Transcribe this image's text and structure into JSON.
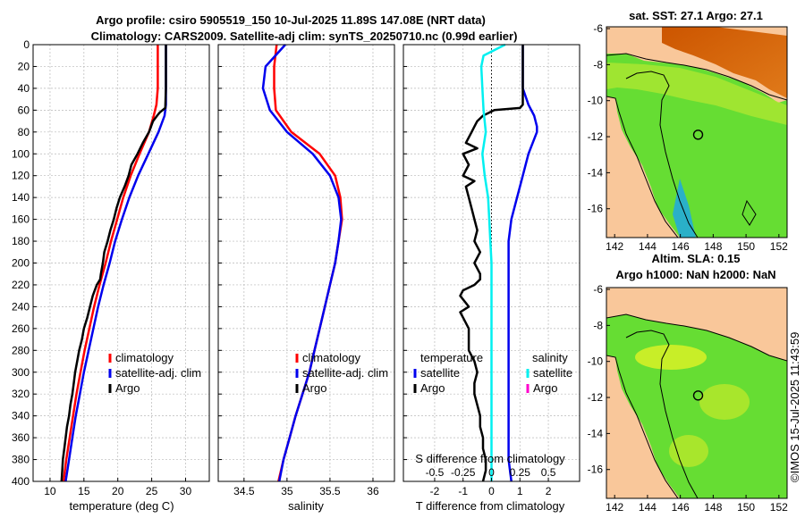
{
  "header": {
    "line1": "Argo profile: csiro 5905519_150 10-Jul-2025 11.89S 147.08E (NRT data)",
    "line2": "Climatology: CARS2009. Satellite-adj clim: synTS_20250710.nc (0.99d earlier)"
  },
  "credit": "©IMOS 15-Jul-2025 11:43:59",
  "colors": {
    "red": "#ff0000",
    "blue": "#0000ee",
    "black": "#000000",
    "cyan": "#00f0f0",
    "magenta": "#ff00cc",
    "grid": "#b8b8b8",
    "land": "#f9c79a",
    "ocean": "#66dd33"
  },
  "chart_data": [
    {
      "id": "temperature",
      "type": "line",
      "xlabel": "temperature (deg C)",
      "ylim": [
        400,
        0
      ],
      "xlim": [
        7.5,
        33.5
      ],
      "xticks": [
        10,
        15,
        20,
        25,
        30
      ],
      "yticks": [
        0,
        20,
        40,
        60,
        80,
        100,
        120,
        140,
        160,
        180,
        200,
        220,
        240,
        260,
        280,
        300,
        320,
        340,
        360,
        380,
        400
      ],
      "legend": [
        "climatology",
        "satellite-adj. clim",
        "Argo"
      ],
      "series": [
        {
          "name": "climatology",
          "color": "#ff0000",
          "depth": [
            0,
            20,
            40,
            55,
            65,
            80,
            100,
            120,
            140,
            160,
            180,
            200,
            220,
            240,
            260,
            280,
            300,
            320,
            340,
            360,
            380,
            400
          ],
          "values": [
            25.9,
            25.9,
            25.9,
            25.7,
            25.3,
            24.6,
            23.2,
            21.9,
            20.8,
            19.9,
            19.0,
            18.2,
            17.3,
            16.5,
            15.8,
            15.1,
            14.5,
            13.9,
            13.4,
            12.9,
            12.4,
            12.0
          ]
        },
        {
          "name": "satellite-adj. clim",
          "color": "#0000ee",
          "depth": [
            0,
            20,
            40,
            55,
            65,
            80,
            100,
            120,
            140,
            160,
            180,
            200,
            220,
            240,
            260,
            280,
            300,
            320,
            340,
            360,
            380,
            400
          ],
          "values": [
            27.1,
            27.1,
            27.1,
            27.1,
            26.9,
            26.0,
            24.5,
            23.0,
            21.7,
            20.6,
            19.6,
            18.8,
            17.9,
            17.1,
            16.4,
            15.7,
            15.0,
            14.4,
            13.8,
            13.3,
            12.8,
            12.3
          ]
        },
        {
          "name": "Argo",
          "color": "#000000",
          "depth": [
            0,
            20,
            40,
            58,
            62,
            65,
            70,
            80,
            90,
            100,
            110,
            120,
            130,
            140,
            150,
            160,
            170,
            180,
            190,
            200,
            210,
            215,
            220,
            230,
            240,
            250,
            260,
            270,
            280,
            290,
            300,
            310,
            320,
            330,
            340,
            350,
            360,
            370,
            380,
            390,
            400
          ],
          "values": [
            27.1,
            27.1,
            27.1,
            27.0,
            26.2,
            25.8,
            25.2,
            24.6,
            23.7,
            22.9,
            22.0,
            21.6,
            21.0,
            20.3,
            19.8,
            19.4,
            18.9,
            18.5,
            18.0,
            17.8,
            17.5,
            17.4,
            16.9,
            16.3,
            15.9,
            15.5,
            15.0,
            14.7,
            14.3,
            14.0,
            13.7,
            13.5,
            13.3,
            13.0,
            12.8,
            12.5,
            12.3,
            12.1,
            11.9,
            11.8,
            11.7
          ]
        }
      ]
    },
    {
      "id": "salinity",
      "type": "line",
      "xlabel": "salinity",
      "ylim": [
        400,
        0
      ],
      "xlim": [
        34.2,
        36.25
      ],
      "xticks": [
        34.5,
        35,
        35.5,
        36
      ],
      "xticklabels": [
        "34.5",
        "35",
        "35.5",
        "36"
      ],
      "legend": [
        "climatology",
        "satellite-adj. clim",
        "Argo"
      ],
      "series": [
        {
          "name": "climatology",
          "color": "#ff0000",
          "depth": [
            0,
            20,
            40,
            60,
            80,
            100,
            120,
            140,
            160,
            180,
            200,
            220,
            240,
            260,
            280,
            300,
            320,
            340,
            360,
            380,
            400
          ],
          "values": [
            34.88,
            34.85,
            34.85,
            34.87,
            35.05,
            35.38,
            35.56,
            35.62,
            35.64,
            35.6,
            35.56,
            35.5,
            35.44,
            35.38,
            35.32,
            35.26,
            35.18,
            35.1,
            35.03,
            34.96,
            34.9
          ]
        },
        {
          "name": "satellite-adj. clim",
          "color": "#0000ee",
          "depth": [
            0,
            20,
            40,
            60,
            80,
            100,
            120,
            140,
            160,
            180,
            200,
            220,
            240,
            260,
            280,
            300,
            320,
            340,
            360,
            380,
            400
          ],
          "values": [
            34.98,
            34.75,
            34.72,
            34.8,
            35.0,
            35.3,
            35.5,
            35.6,
            35.63,
            35.6,
            35.56,
            35.5,
            35.44,
            35.38,
            35.32,
            35.26,
            35.18,
            35.1,
            35.03,
            34.96,
            34.91
          ]
        }
      ]
    },
    {
      "id": "differences",
      "type": "line",
      "xlabel": "T difference from climatology",
      "x2label": "S difference from climatology",
      "ylim": [
        400,
        0
      ],
      "xlim": [
        -3.1,
        3.1
      ],
      "xticks": [
        -2,
        -1,
        0,
        1,
        2
      ],
      "x2lim": [
        -0.775,
        0.775
      ],
      "x2ticks": [
        -0.5,
        -0.25,
        0,
        0.25,
        0.5
      ],
      "x2ticklabels": [
        "-0.5",
        "-0.25",
        "0",
        "0.25",
        "0.5"
      ],
      "legend_left_title": "temperature",
      "legend_left": [
        "satellite",
        "Argo"
      ],
      "legend_right_title": "salinity",
      "legend_right": [
        "satellite",
        "Argo"
      ],
      "series": [
        {
          "name": "temperature satellite",
          "color": "#0000ee",
          "depth": [
            0,
            20,
            40,
            55,
            65,
            75,
            80,
            100,
            120,
            140,
            160,
            180,
            200,
            220,
            240,
            260,
            280,
            300,
            320,
            340,
            360,
            380,
            400
          ],
          "values": [
            1.1,
            1.1,
            1.1,
            1.3,
            1.5,
            1.6,
            1.6,
            1.3,
            1.1,
            0.9,
            0.7,
            0.6,
            0.6,
            0.6,
            0.6,
            0.6,
            0.6,
            0.6,
            0.6,
            0.6,
            0.6,
            0.6,
            0.7
          ]
        },
        {
          "name": "temperature Argo",
          "color": "#000000",
          "depth": [
            0,
            40,
            55,
            58,
            60,
            65,
            70,
            75,
            80,
            90,
            95,
            100,
            110,
            120,
            125,
            130,
            140,
            150,
            160,
            170,
            180,
            190,
            200,
            205,
            210,
            215,
            220,
            225,
            230,
            240,
            245,
            250,
            260,
            270,
            280,
            290,
            300,
            310,
            320,
            330,
            340,
            350,
            360,
            370,
            380,
            390,
            400
          ],
          "values": [
            1.1,
            1.1,
            1.1,
            1.0,
            0.1,
            -0.3,
            -0.5,
            -0.6,
            -0.7,
            -0.9,
            -0.5,
            -1.0,
            -0.8,
            -1.0,
            -0.6,
            -0.9,
            -0.8,
            -0.7,
            -0.6,
            -0.5,
            -0.6,
            -0.4,
            -0.6,
            -0.5,
            -0.4,
            -0.4,
            -0.6,
            -1.0,
            -1.1,
            -0.8,
            -1.1,
            -1.0,
            -0.8,
            -0.8,
            -0.8,
            -0.6,
            -0.5,
            -0.6,
            -0.6,
            -0.5,
            -0.4,
            -0.4,
            -0.3,
            -0.3,
            -0.2,
            -0.2,
            -0.3
          ]
        },
        {
          "name": "salinity satellite",
          "color": "#00f0f0",
          "axis": "x2",
          "depth": [
            0,
            10,
            20,
            40,
            60,
            80,
            100,
            120,
            140,
            160,
            180,
            200,
            220,
            240,
            260,
            280,
            300,
            320,
            340,
            360,
            380,
            400
          ],
          "values": [
            0.12,
            -0.07,
            -0.09,
            -0.08,
            -0.07,
            -0.05,
            -0.08,
            -0.06,
            -0.03,
            -0.02,
            -0.01,
            0.0,
            0.0,
            0.0,
            0.0,
            0.0,
            0.0,
            0.0,
            0.0,
            0.0,
            0.0,
            0.0
          ]
        },
        {
          "name": "salinity Argo",
          "color": "#ff00cc",
          "axis": "x2",
          "depth": [],
          "values": []
        }
      ]
    },
    {
      "id": "map-sst",
      "type": "heatmap",
      "title": "sat. SST: 27.1 Argo: 27.1",
      "xlim": [
        141.5,
        152.5
      ],
      "ylim": [
        -17.6,
        -5.9
      ],
      "xticks": [
        142,
        144,
        146,
        148,
        150,
        152
      ],
      "yticks": [
        -6,
        -8,
        -10,
        -12,
        -14,
        -16
      ],
      "marker": {
        "lon": 147.08,
        "lat": -11.89
      }
    },
    {
      "id": "map-sla",
      "type": "heatmap",
      "title_line1": "Altim. SLA: 0.15",
      "title_line2": "Argo h1000: NaN h2000: NaN",
      "xlim": [
        141.5,
        152.5
      ],
      "ylim": [
        -17.6,
        -5.9
      ],
      "xticks": [
        142,
        144,
        146,
        148,
        150,
        152
      ],
      "yticks": [
        -6,
        -8,
        -10,
        -12,
        -14,
        -16
      ],
      "marker": {
        "lon": 147.08,
        "lat": -11.89
      }
    }
  ]
}
